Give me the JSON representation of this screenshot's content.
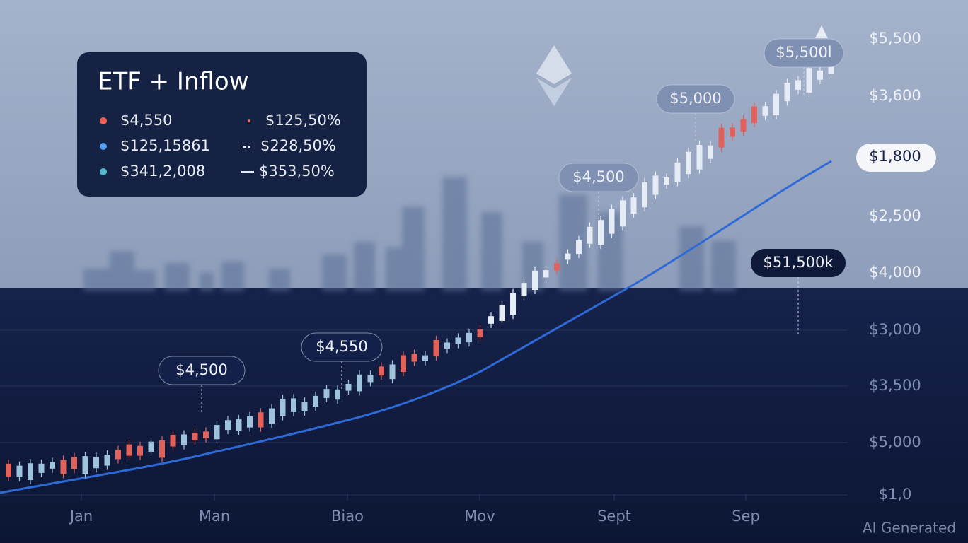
{
  "legend": {
    "title": "ETF + Inflow",
    "rows": [
      {
        "value": "$4,550",
        "change": "$125,50%"
      },
      {
        "value": "$125,15861",
        "change": "$228,50%"
      },
      {
        "value": "$341,2,008",
        "change": "$353,50%"
      }
    ]
  },
  "y_axis_labels": [
    "$5,500",
    "$3,600",
    "$1,800",
    "$2,500",
    "$4,000",
    "$3,000",
    "$3,500",
    "$5,000",
    "$1,0"
  ],
  "x_axis_labels": [
    "Jan",
    "Man",
    "Biao",
    "Mov",
    "Sept",
    "Sep"
  ],
  "annotations": [
    "$4,500",
    "$4,550",
    "$4,500",
    "$5,000",
    "$5,500l",
    "$51,500k"
  ],
  "watermark": "AI Generated"
}
